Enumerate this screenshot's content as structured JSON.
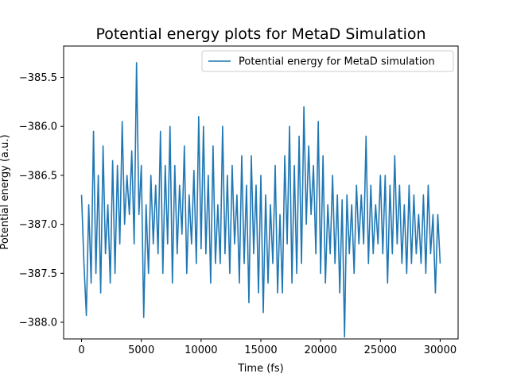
{
  "chart_data": {
    "type": "line",
    "title": "Potential energy plots for MetaD Simulation",
    "xlabel": "Time (fs)",
    "ylabel": "Potential energy (a.u.)",
    "xlim": [
      -1500,
      31500
    ],
    "ylim": [
      -388.17,
      -385.18
    ],
    "xticks": [
      0,
      5000,
      10000,
      15000,
      20000,
      25000,
      30000
    ],
    "xtick_labels": [
      "0",
      "5000",
      "10000",
      "15000",
      "20000",
      "25000",
      "30000"
    ],
    "yticks": [
      -385.5,
      -386.0,
      -386.5,
      -387.0,
      -387.5,
      -388.0
    ],
    "ytick_labels": [
      "−385.5",
      "−386.0",
      "−386.5",
      "−387.0",
      "−387.5",
      "−388.0"
    ],
    "grid": false,
    "legend_position": "upper-right",
    "series": [
      {
        "name": "Potential energy for MetaD simulation",
        "color": "#1f77b4",
        "x": [
          0,
          200,
          400,
          600,
          800,
          1000,
          1200,
          1400,
          1600,
          1800,
          2000,
          2200,
          2400,
          2600,
          2800,
          3000,
          3200,
          3400,
          3600,
          3800,
          4000,
          4200,
          4400,
          4600,
          4800,
          5000,
          5200,
          5400,
          5600,
          5800,
          6000,
          6200,
          6400,
          6600,
          6800,
          7000,
          7200,
          7400,
          7600,
          7800,
          8000,
          8200,
          8400,
          8600,
          8800,
          9000,
          9200,
          9400,
          9600,
          9800,
          10000,
          10200,
          10400,
          10600,
          10800,
          11000,
          11200,
          11400,
          11600,
          11800,
          12000,
          12200,
          12400,
          12600,
          12800,
          13000,
          13200,
          13400,
          13600,
          13800,
          14000,
          14200,
          14400,
          14600,
          14800,
          15000,
          15200,
          15400,
          15600,
          15800,
          16000,
          16200,
          16400,
          16600,
          16800,
          17000,
          17200,
          17400,
          17600,
          17800,
          18000,
          18200,
          18400,
          18600,
          18800,
          19000,
          19200,
          19400,
          19600,
          19800,
          20000,
          20200,
          20400,
          20600,
          20800,
          21000,
          21200,
          21400,
          21600,
          21800,
          22000,
          22200,
          22400,
          22600,
          22800,
          23000,
          23200,
          23400,
          23600,
          23800,
          24000,
          24200,
          24400,
          24600,
          24800,
          25000,
          25200,
          25400,
          25600,
          25800,
          26000,
          26200,
          26400,
          26600,
          26800,
          27000,
          27200,
          27400,
          27600,
          27800,
          28000,
          28200,
          28400,
          28600,
          28800,
          29000,
          29200,
          29400,
          29600,
          29800,
          30000
        ],
        "y": [
          -386.7,
          -387.4,
          -387.93,
          -386.8,
          -387.6,
          -386.05,
          -387.5,
          -386.5,
          -387.7,
          -386.2,
          -387.3,
          -386.8,
          -387.6,
          -386.35,
          -387.5,
          -386.4,
          -387.2,
          -385.95,
          -387.0,
          -386.5,
          -386.9,
          -386.25,
          -387.2,
          -385.35,
          -386.9,
          -386.4,
          -387.95,
          -386.8,
          -387.5,
          -386.5,
          -387.2,
          -386.6,
          -387.3,
          -386.05,
          -387.5,
          -386.4,
          -387.2,
          -386.0,
          -387.6,
          -386.4,
          -387.3,
          -386.6,
          -387.1,
          -386.2,
          -387.5,
          -386.7,
          -387.2,
          -386.45,
          -387.4,
          -385.9,
          -387.25,
          -386.0,
          -387.3,
          -386.5,
          -387.6,
          -386.2,
          -387.4,
          -386.8,
          -387.4,
          -386.0,
          -387.3,
          -386.5,
          -387.5,
          -386.4,
          -387.2,
          -386.7,
          -387.6,
          -386.3,
          -387.4,
          -386.6,
          -387.8,
          -386.3,
          -387.3,
          -386.6,
          -387.7,
          -386.5,
          -387.9,
          -386.7,
          -387.6,
          -386.8,
          -387.4,
          -386.4,
          -387.7,
          -386.9,
          -387.7,
          -386.3,
          -387.2,
          -386.0,
          -387.6,
          -386.4,
          -387.5,
          -386.1,
          -387.4,
          -385.8,
          -387.0,
          -386.2,
          -386.9,
          -386.4,
          -387.3,
          -385.95,
          -387.5,
          -386.3,
          -387.6,
          -386.8,
          -387.3,
          -386.5,
          -387.4,
          -386.7,
          -387.7,
          -386.75,
          -388.15,
          -386.7,
          -387.3,
          -386.8,
          -387.5,
          -386.6,
          -387.2,
          -386.7,
          -387.2,
          -386.1,
          -387.4,
          -386.6,
          -387.3,
          -386.8,
          -387.2,
          -386.5,
          -387.3,
          -386.5,
          -387.6,
          -386.6,
          -387.3,
          -386.3,
          -387.2,
          -386.6,
          -387.4,
          -386.8,
          -387.5,
          -386.6,
          -387.4,
          -386.7,
          -387.3,
          -386.9,
          -387.4,
          -386.7,
          -387.5,
          -386.6,
          -387.3,
          -386.9,
          -387.7,
          -386.9,
          -387.4
        ]
      }
    ]
  }
}
